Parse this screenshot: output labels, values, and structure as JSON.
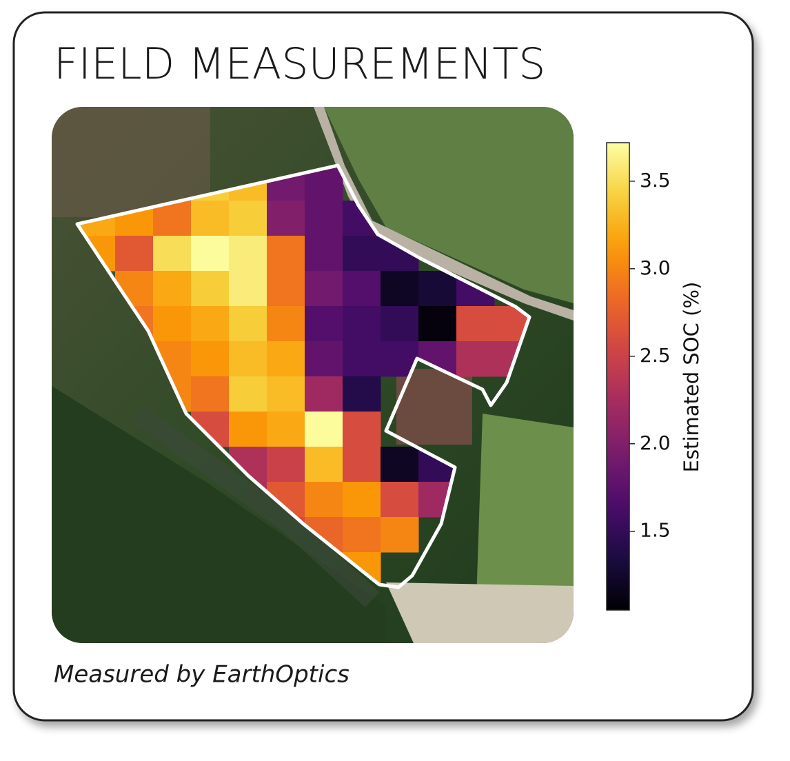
{
  "chart_data": {
    "type": "heatmap",
    "title": "FIELD MEASUREMENTS",
    "caption": "Measured by EarthOptics",
    "colorbar_label": "Estimated SOC (%)",
    "colormap": "inferno",
    "clim": [
      1.05,
      3.72
    ],
    "cticks": [
      1.5,
      {
        "value": 2,
        "label": "2.0"
      },
      2.5,
      {
        "value": 3,
        "label": "3.0"
      },
      3.5
    ],
    "grid": [
      [
        null,
        null,
        null,
        3.4,
        3.3,
        1.9,
        1.8,
        null,
        null,
        null,
        null,
        null
      ],
      [
        3.2,
        3.1,
        2.9,
        3.3,
        3.4,
        2.0,
        1.8,
        1.6,
        null,
        null,
        null,
        null
      ],
      [
        3.1,
        2.7,
        3.5,
        3.7,
        3.6,
        2.9,
        1.8,
        1.5,
        1.5,
        null,
        null,
        null
      ],
      [
        null,
        3.0,
        3.2,
        3.4,
        3.6,
        2.9,
        1.9,
        1.7,
        1.2,
        1.3,
        1.6,
        null
      ],
      [
        null,
        2.9,
        3.1,
        3.2,
        3.4,
        3.0,
        1.7,
        1.6,
        1.5,
        1.1,
        2.6,
        2.6
      ],
      [
        null,
        null,
        3.0,
        3.1,
        3.3,
        3.2,
        1.8,
        1.6,
        1.6,
        1.8,
        2.3,
        2.3
      ],
      [
        null,
        null,
        3.0,
        2.9,
        3.4,
        3.3,
        2.2,
        1.4,
        null,
        null,
        null,
        null
      ],
      [
        null,
        null,
        null,
        2.6,
        3.1,
        3.2,
        3.7,
        2.6,
        null,
        null,
        null,
        null
      ],
      [
        null,
        null,
        null,
        null,
        2.3,
        2.5,
        3.3,
        2.6,
        1.2,
        1.5,
        null,
        null
      ],
      [
        null,
        null,
        null,
        null,
        2.3,
        2.7,
        3.0,
        3.1,
        2.6,
        2.2,
        null,
        null
      ],
      [
        null,
        null,
        null,
        null,
        null,
        2.6,
        2.8,
        2.9,
        3.0,
        null,
        null,
        null
      ],
      [
        null,
        null,
        null,
        null,
        null,
        null,
        2.9,
        3.1,
        null,
        null,
        null,
        null
      ]
    ]
  }
}
